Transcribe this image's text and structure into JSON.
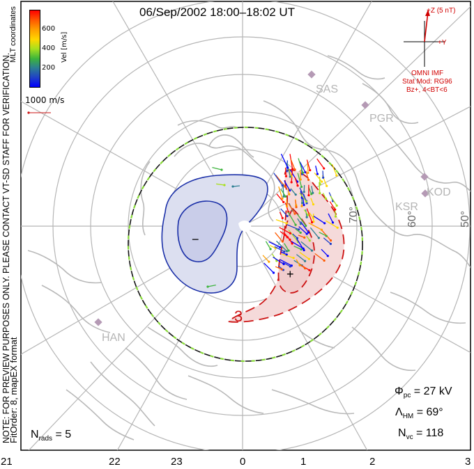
{
  "title": "06/Sep/2002 18:00–18:02 UT",
  "colorbar": {
    "label": "Vel [m/s]",
    "ticks": [
      "600",
      "400",
      "200"
    ],
    "colors": [
      "#ff0000",
      "#ff5a00",
      "#ff9f00",
      "#ffd700",
      "#a8e01e",
      "#3cb43c",
      "#2c7f92",
      "#1f3fc8",
      "#0000ff"
    ]
  },
  "coordinates_label": "MLT coordinates",
  "vector_scale": "1000 m/s",
  "stations": [
    "SAS",
    "PGR",
    "KOD",
    "KSR",
    "HAN"
  ],
  "latitudes": [
    "70°",
    "60°",
    "50°"
  ],
  "latitude_extra": "0",
  "imf": {
    "z_label": "+Z (5 nT)",
    "y_label": "+Y",
    "source": "OMNI IMF",
    "model": "Stat Mod: RG96",
    "condition": "Bz+, 4<BT<6",
    "bz_nT": 5,
    "by_nT": 1
  },
  "contour_labels": [
    "−",
    "+",
    "3"
  ],
  "disclaimer": "NOTE: FOR PREVIEW PURPOSES ONLY. PLEASE CONTACT VT-SD STAFF FOR VERIFICATION.",
  "fit_info": "FitOrder: 8, mapEX format",
  "stats": {
    "phi_symbol": "Φ",
    "phi_sub": "pc",
    "phi_value": "= 27 kV",
    "lambda_symbol": "Λ",
    "lambda_sub": "HM",
    "lambda_value": "= 69°",
    "nvc_symbol": "N",
    "nvc_sub": "vc",
    "nvc_value": "= 118",
    "nrads_symbol": "N",
    "nrads_sub": "rads",
    "nrads_value": "= 5"
  },
  "mlt_axis": [
    "21",
    "22",
    "23",
    "0",
    "1",
    "2",
    "3"
  ],
  "colors": {
    "negative_cell": "#1a2fa8",
    "positive_cell": "#cc1111",
    "hm_boundary": "#86d936",
    "grid": "#b5b5b5",
    "coast": "#b8b8b8",
    "station": "#b59ab5",
    "imf": "#d10000"
  }
}
